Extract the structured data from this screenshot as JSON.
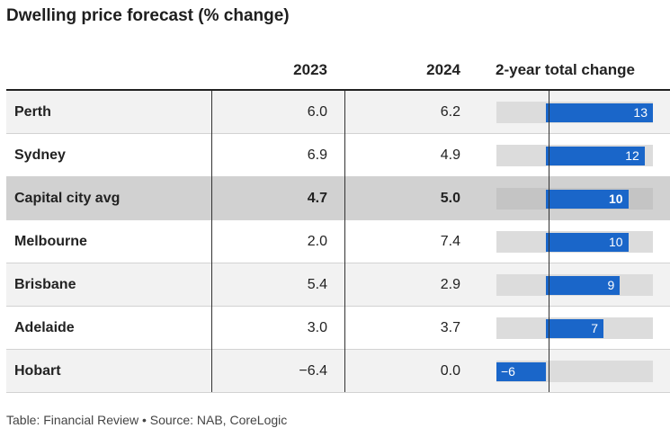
{
  "title": "Dwelling price forecast (% change)",
  "footer": "Table: Financial Review • Source: NAB, CoreLogic",
  "colors": {
    "bar": "#1a66c9",
    "track": "#dcdcdc",
    "highlight_row": "#d1d1d1",
    "zebra_row": "#f2f2f2"
  },
  "chart_data": {
    "type": "table",
    "columns": [
      "",
      "2023",
      "2024",
      "2-year total change"
    ],
    "rows": [
      {
        "name": "Perth",
        "y2023": "6.0",
        "y2024": "6.2",
        "total": 13,
        "total_label": "13",
        "highlight": false
      },
      {
        "name": "Sydney",
        "y2023": "6.9",
        "y2024": "4.9",
        "total": 12,
        "total_label": "12",
        "highlight": false
      },
      {
        "name": "Capital city avg",
        "y2023": "4.7",
        "y2024": "5.0",
        "total": 10,
        "total_label": "10",
        "highlight": true
      },
      {
        "name": "Melbourne",
        "y2023": "2.0",
        "y2024": "7.4",
        "total": 10,
        "total_label": "10",
        "highlight": false
      },
      {
        "name": "Brisbane",
        "y2023": "5.4",
        "y2024": "2.9",
        "total": 9,
        "total_label": "9",
        "highlight": false
      },
      {
        "name": "Adelaide",
        "y2023": "3.0",
        "y2024": "3.7",
        "total": 7,
        "total_label": "7",
        "highlight": false
      },
      {
        "name": "Hobart",
        "y2023": "−6.4",
        "y2024": "0.0",
        "total": -6,
        "total_label": "−6",
        "highlight": false
      }
    ],
    "bar_range": [
      -6,
      13
    ]
  }
}
